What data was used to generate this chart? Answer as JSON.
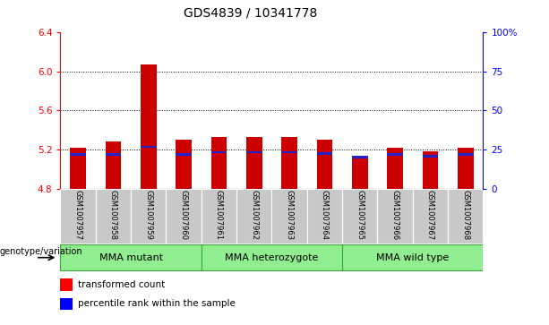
{
  "title": "GDS4839 / 10341778",
  "samples": [
    "GSM1007957",
    "GSM1007958",
    "GSM1007959",
    "GSM1007960",
    "GSM1007961",
    "GSM1007962",
    "GSM1007963",
    "GSM1007964",
    "GSM1007965",
    "GSM1007966",
    "GSM1007967",
    "GSM1007968"
  ],
  "red_values": [
    5.22,
    5.28,
    6.07,
    5.3,
    5.33,
    5.33,
    5.33,
    5.3,
    5.12,
    5.22,
    5.18,
    5.22
  ],
  "blue_values": [
    5.15,
    5.15,
    5.23,
    5.15,
    5.17,
    5.17,
    5.17,
    5.16,
    5.12,
    5.15,
    5.13,
    5.15
  ],
  "blue_heights": [
    0.025,
    0.025,
    0.025,
    0.025,
    0.025,
    0.025,
    0.025,
    0.025,
    0.025,
    0.025,
    0.025,
    0.025
  ],
  "ymin": 4.8,
  "ymax": 6.4,
  "yticks_left": [
    4.8,
    5.2,
    5.6,
    6.0,
    6.4
  ],
  "right_tick_positions": [
    4.8,
    5.2,
    5.6,
    6.0,
    6.4
  ],
  "ytick_right_labels": [
    "0",
    "25",
    "50",
    "75",
    "100%"
  ],
  "groups": [
    {
      "label": "MMA mutant",
      "start": 0,
      "end": 3
    },
    {
      "label": "MMA heterozygote",
      "start": 4,
      "end": 7
    },
    {
      "label": "MMA wild type",
      "start": 8,
      "end": 11
    }
  ],
  "bar_color": "#CC0000",
  "blue_color": "#2222CC",
  "bar_width": 0.45,
  "base": 4.8,
  "label_bg": "#C8C8C8",
  "green_fill": "#90EE90",
  "green_edge": "#33AA33",
  "legend_red": "transformed count",
  "legend_blue": "percentile rank within the sample",
  "genotype_label": "genotype/variation",
  "title_fontsize": 10,
  "tick_fontsize": 7.5,
  "sample_fontsize": 6,
  "group_fontsize": 8,
  "legend_fontsize": 7.5
}
